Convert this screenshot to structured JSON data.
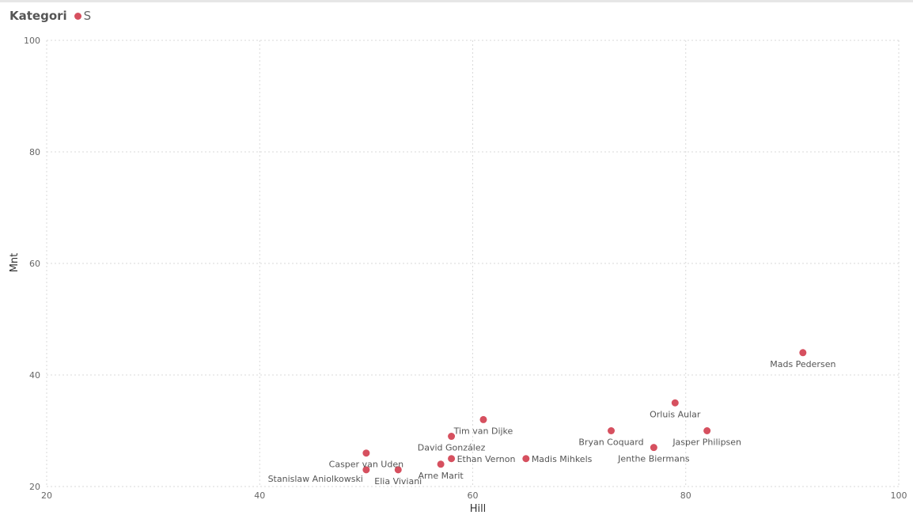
{
  "legend": {
    "title": "Kategori",
    "items": [
      {
        "label": "S",
        "color": "#d6505f"
      }
    ]
  },
  "chart_data": {
    "type": "scatter",
    "xlabel": "Hill",
    "ylabel": "Mnt",
    "xlim": [
      20,
      100
    ],
    "ylim": [
      20,
      100
    ],
    "x_ticks": [
      20,
      40,
      60,
      80,
      100
    ],
    "y_ticks": [
      20,
      40,
      60,
      80,
      100
    ],
    "grid": true,
    "legend_position": "top-left",
    "series": [
      {
        "name": "S",
        "color": "#d6505f",
        "points": [
          {
            "label": "Mads Pedersen",
            "x": 91,
            "y": 44,
            "label_pos": "below"
          },
          {
            "label": "Orluis Aular",
            "x": 79,
            "y": 35,
            "label_pos": "below"
          },
          {
            "label": "Jasper Philipsen",
            "x": 82,
            "y": 30,
            "label_pos": "below"
          },
          {
            "label": "Bryan Coquard",
            "x": 73,
            "y": 30,
            "label_pos": "below"
          },
          {
            "label": "Jenthe Biermans",
            "x": 77,
            "y": 27,
            "label_pos": "below"
          },
          {
            "label": "Madis Mihkels",
            "x": 65,
            "y": 25,
            "label_pos": "right"
          },
          {
            "label": "Tim van Dijke",
            "x": 61,
            "y": 32,
            "label_pos": "below"
          },
          {
            "label": "David González",
            "x": 58,
            "y": 29,
            "label_pos": "below"
          },
          {
            "label": "Ethan Vernon",
            "x": 58,
            "y": 25,
            "label_pos": "right"
          },
          {
            "label": "Arne Marit",
            "x": 57,
            "y": 24,
            "label_pos": "below"
          },
          {
            "label": "Elia Viviani",
            "x": 53,
            "y": 23,
            "label_pos": "below"
          },
          {
            "label": "Casper van Uden",
            "x": 50,
            "y": 26,
            "label_pos": "below"
          },
          {
            "label": "Stanislaw Aniolkowski",
            "x": 50,
            "y": 23,
            "label_pos": "below-left"
          }
        ]
      }
    ]
  }
}
